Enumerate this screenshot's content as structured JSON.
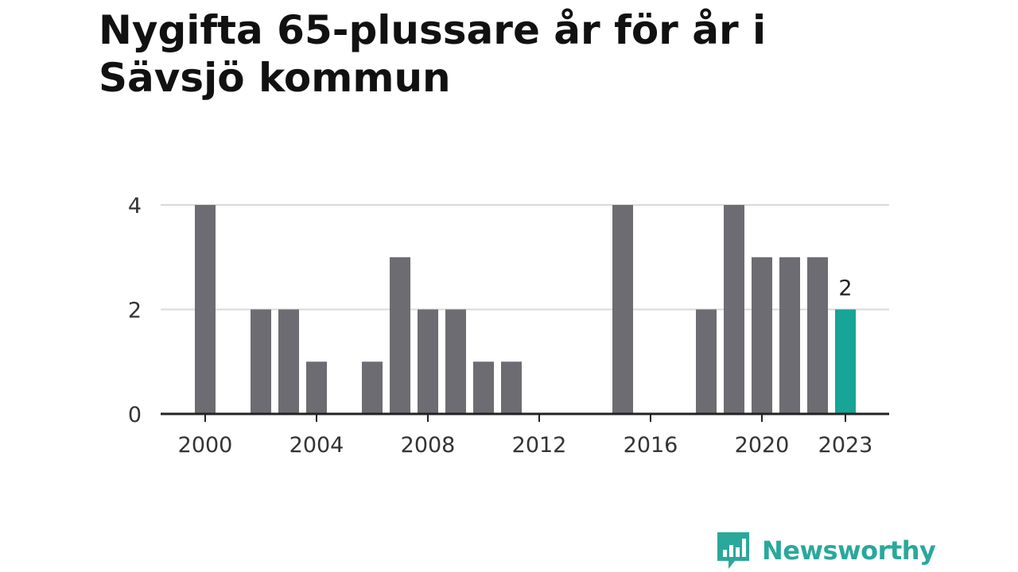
{
  "title": "Nygifta 65-plussare år för år i Sävsjö kommun",
  "brand": {
    "name": "Newsworthy",
    "color": "#2aa89b",
    "icon": "newsworthy-bar-chart-bubble-icon"
  },
  "colors": {
    "bar": "#6d6c72",
    "highlight": "#16a596",
    "grid": "#d9d9d9",
    "axis": "#222222"
  },
  "chart_data": {
    "type": "bar",
    "title": "Nygifta 65-plussare år för år i Sävsjö kommun",
    "xlabel": "",
    "ylabel": "",
    "categories": [
      2000,
      2001,
      2002,
      2003,
      2004,
      2005,
      2006,
      2007,
      2008,
      2009,
      2010,
      2011,
      2012,
      2013,
      2014,
      2015,
      2016,
      2017,
      2018,
      2019,
      2020,
      2021,
      2022,
      2023
    ],
    "values": [
      4,
      0,
      2,
      2,
      1,
      0,
      1,
      3,
      2,
      2,
      1,
      1,
      0,
      0,
      0,
      4,
      0,
      0,
      2,
      4,
      3,
      3,
      3,
      2
    ],
    "highlight": {
      "category": 2023,
      "label": "2"
    },
    "ylim": [
      0,
      4
    ],
    "yticks": [
      "0",
      "2",
      "4"
    ],
    "xticks": [
      "2000",
      "2004",
      "2008",
      "2012",
      "2016",
      "2020",
      "2023"
    ],
    "grid": true,
    "legend": "none"
  }
}
